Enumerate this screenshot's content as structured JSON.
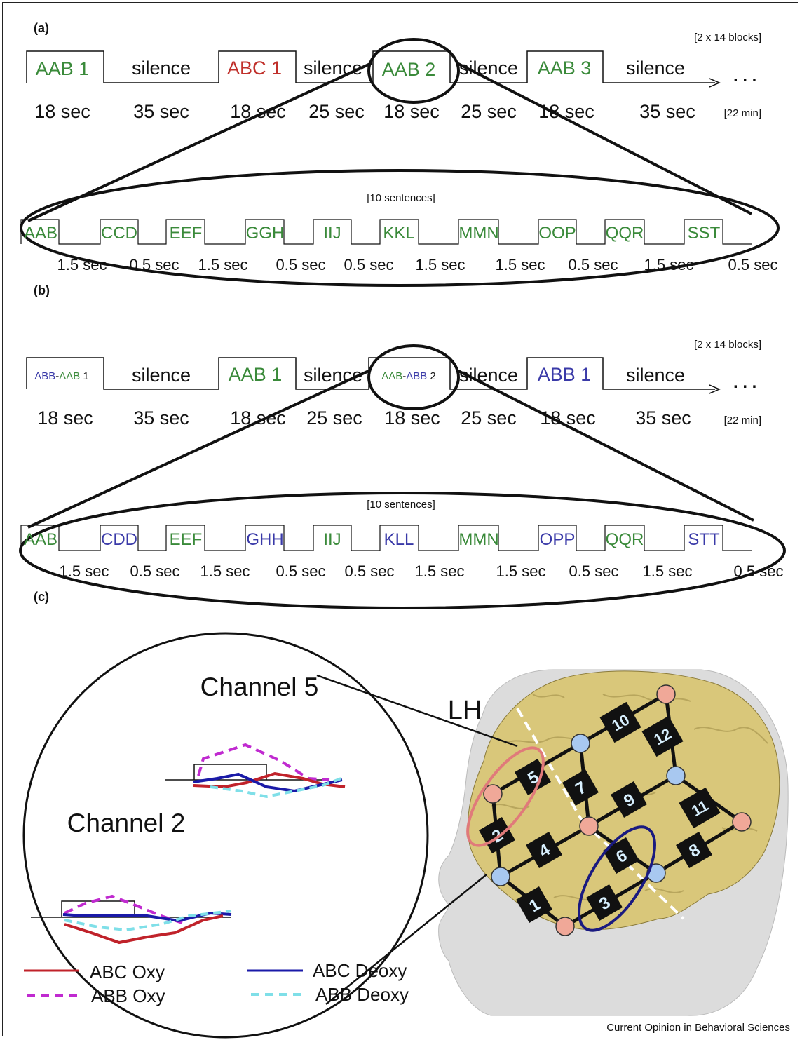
{
  "colors": {
    "green": "#3a8a3a",
    "red": "#c0302b",
    "blue": "#3a3aa8",
    "black": "#111111",
    "oxy_abc": "#c0222a",
    "deoxy_abc": "#1a1aa8",
    "oxy_abb": "#c02ad0",
    "deoxy_abb": "#7fdfe8",
    "optode_red": "#f0a898",
    "optode_blue": "#a8c8f0",
    "brain": "#d9c77a",
    "head": "#dcdcdc",
    "roi_red": "#e07a7a",
    "roi_blue": "#1a1a80"
  },
  "panel_a": {
    "label": "(a)",
    "blocks_note": "[2 x 14 blocks]",
    "duration_note": "[22 min]",
    "sentences_note": "[10 sentences]",
    "ellipsis": ". . .",
    "top_labels": [
      {
        "text": "AAB 1",
        "color": "green"
      },
      {
        "text": "silence",
        "color": "black"
      },
      {
        "text": "ABC 1",
        "color": "red"
      },
      {
        "text": "silence",
        "color": "black"
      },
      {
        "text": "AAB 2",
        "color": "green"
      },
      {
        "text": "silence",
        "color": "black"
      },
      {
        "text": "AAB 3",
        "color": "green"
      },
      {
        "text": "silence",
        "color": "black"
      }
    ],
    "top_durations": [
      "18 sec",
      "35 sec",
      "18 sec",
      "25 sec",
      "18 sec",
      "25 sec",
      "18 sec",
      "35 sec"
    ],
    "syllables": [
      {
        "text": "AAB",
        "color": "green"
      },
      {
        "text": "CCD",
        "color": "green"
      },
      {
        "text": "EEF",
        "color": "green"
      },
      {
        "text": "GGH",
        "color": "green"
      },
      {
        "text": "IIJ",
        "color": "green"
      },
      {
        "text": "KKL",
        "color": "green"
      },
      {
        "text": "MMN",
        "color": "green"
      },
      {
        "text": "OOP",
        "color": "green"
      },
      {
        "text": "QQR",
        "color": "green"
      },
      {
        "text": "SST",
        "color": "green"
      }
    ],
    "bottom_durations": [
      "1.5 sec",
      "0.5 sec",
      "1.5 sec",
      "0.5 sec",
      "0.5 sec",
      "1.5 sec",
      "1.5 sec",
      "0.5 sec",
      "1.5 sec",
      "0.5 sec"
    ]
  },
  "panel_b": {
    "label": "(b)",
    "blocks_note": "[2 x 14 blocks]",
    "duration_note": "[22 min]",
    "sentences_note": "[10 sentences]",
    "ellipsis": ". . .",
    "top_labels": [
      {
        "parts": [
          {
            "text": "ABB",
            "color": "blue"
          },
          {
            "text": "-",
            "color": "black"
          },
          {
            "text": "AAB",
            "color": "green"
          },
          {
            "text": " 1",
            "color": "black"
          }
        ]
      },
      {
        "parts": [
          {
            "text": "silence",
            "color": "black"
          }
        ]
      },
      {
        "parts": [
          {
            "text": "AAB 1",
            "color": "green"
          }
        ]
      },
      {
        "parts": [
          {
            "text": "silence",
            "color": "black"
          }
        ]
      },
      {
        "parts": [
          {
            "text": "AAB",
            "color": "green"
          },
          {
            "text": "-",
            "color": "black"
          },
          {
            "text": "ABB",
            "color": "blue"
          },
          {
            "text": " 2",
            "color": "black"
          }
        ]
      },
      {
        "parts": [
          {
            "text": "silence",
            "color": "black"
          }
        ]
      },
      {
        "parts": [
          {
            "text": "ABB 1",
            "color": "blue"
          }
        ]
      },
      {
        "parts": [
          {
            "text": "silence",
            "color": "black"
          }
        ]
      }
    ],
    "top_durations": [
      "18 sec",
      "35 sec",
      "18 sec",
      "25 sec",
      "18 sec",
      "25 sec",
      "18 sec",
      "35 sec"
    ],
    "syllables": [
      {
        "text": "AAB",
        "color": "green"
      },
      {
        "text": "CDD",
        "color": "blue"
      },
      {
        "text": "EEF",
        "color": "green"
      },
      {
        "text": "GHH",
        "color": "blue"
      },
      {
        "text": "IIJ",
        "color": "green"
      },
      {
        "text": "KLL",
        "color": "blue"
      },
      {
        "text": "MMN",
        "color": "green"
      },
      {
        "text": "OPP",
        "color": "blue"
      },
      {
        "text": "QQR",
        "color": "green"
      },
      {
        "text": "STT",
        "color": "blue"
      }
    ],
    "bottom_durations": [
      "1.5 sec",
      "0.5 sec",
      "1.5 sec",
      "0.5 sec",
      "0.5 sec",
      "1.5 sec",
      "1.5 sec",
      "0.5 sec",
      "1.5 sec",
      "0.5 sec"
    ]
  },
  "panel_c": {
    "label": "(c)",
    "hemisphere_label": "LH",
    "channel5_title": "Channel 5",
    "channel2_title": "Channel 2",
    "channels": [
      "1",
      "2",
      "3",
      "4",
      "5",
      "6",
      "7",
      "8",
      "9",
      "10",
      "11",
      "12"
    ],
    "legend": [
      {
        "label": "ABC Oxy",
        "color_key": "oxy_abc",
        "dash": "solid"
      },
      {
        "label": "ABC Deoxy",
        "color_key": "deoxy_abc",
        "dash": "solid"
      },
      {
        "label": "ABB Oxy",
        "color_key": "oxy_abb",
        "dash": "dashed"
      },
      {
        "label": "ABB Deoxy",
        "color_key": "deoxy_abb",
        "dash": "dashed"
      }
    ]
  },
  "footer": {
    "credit": "Current Opinion in Behavioral Sciences"
  }
}
